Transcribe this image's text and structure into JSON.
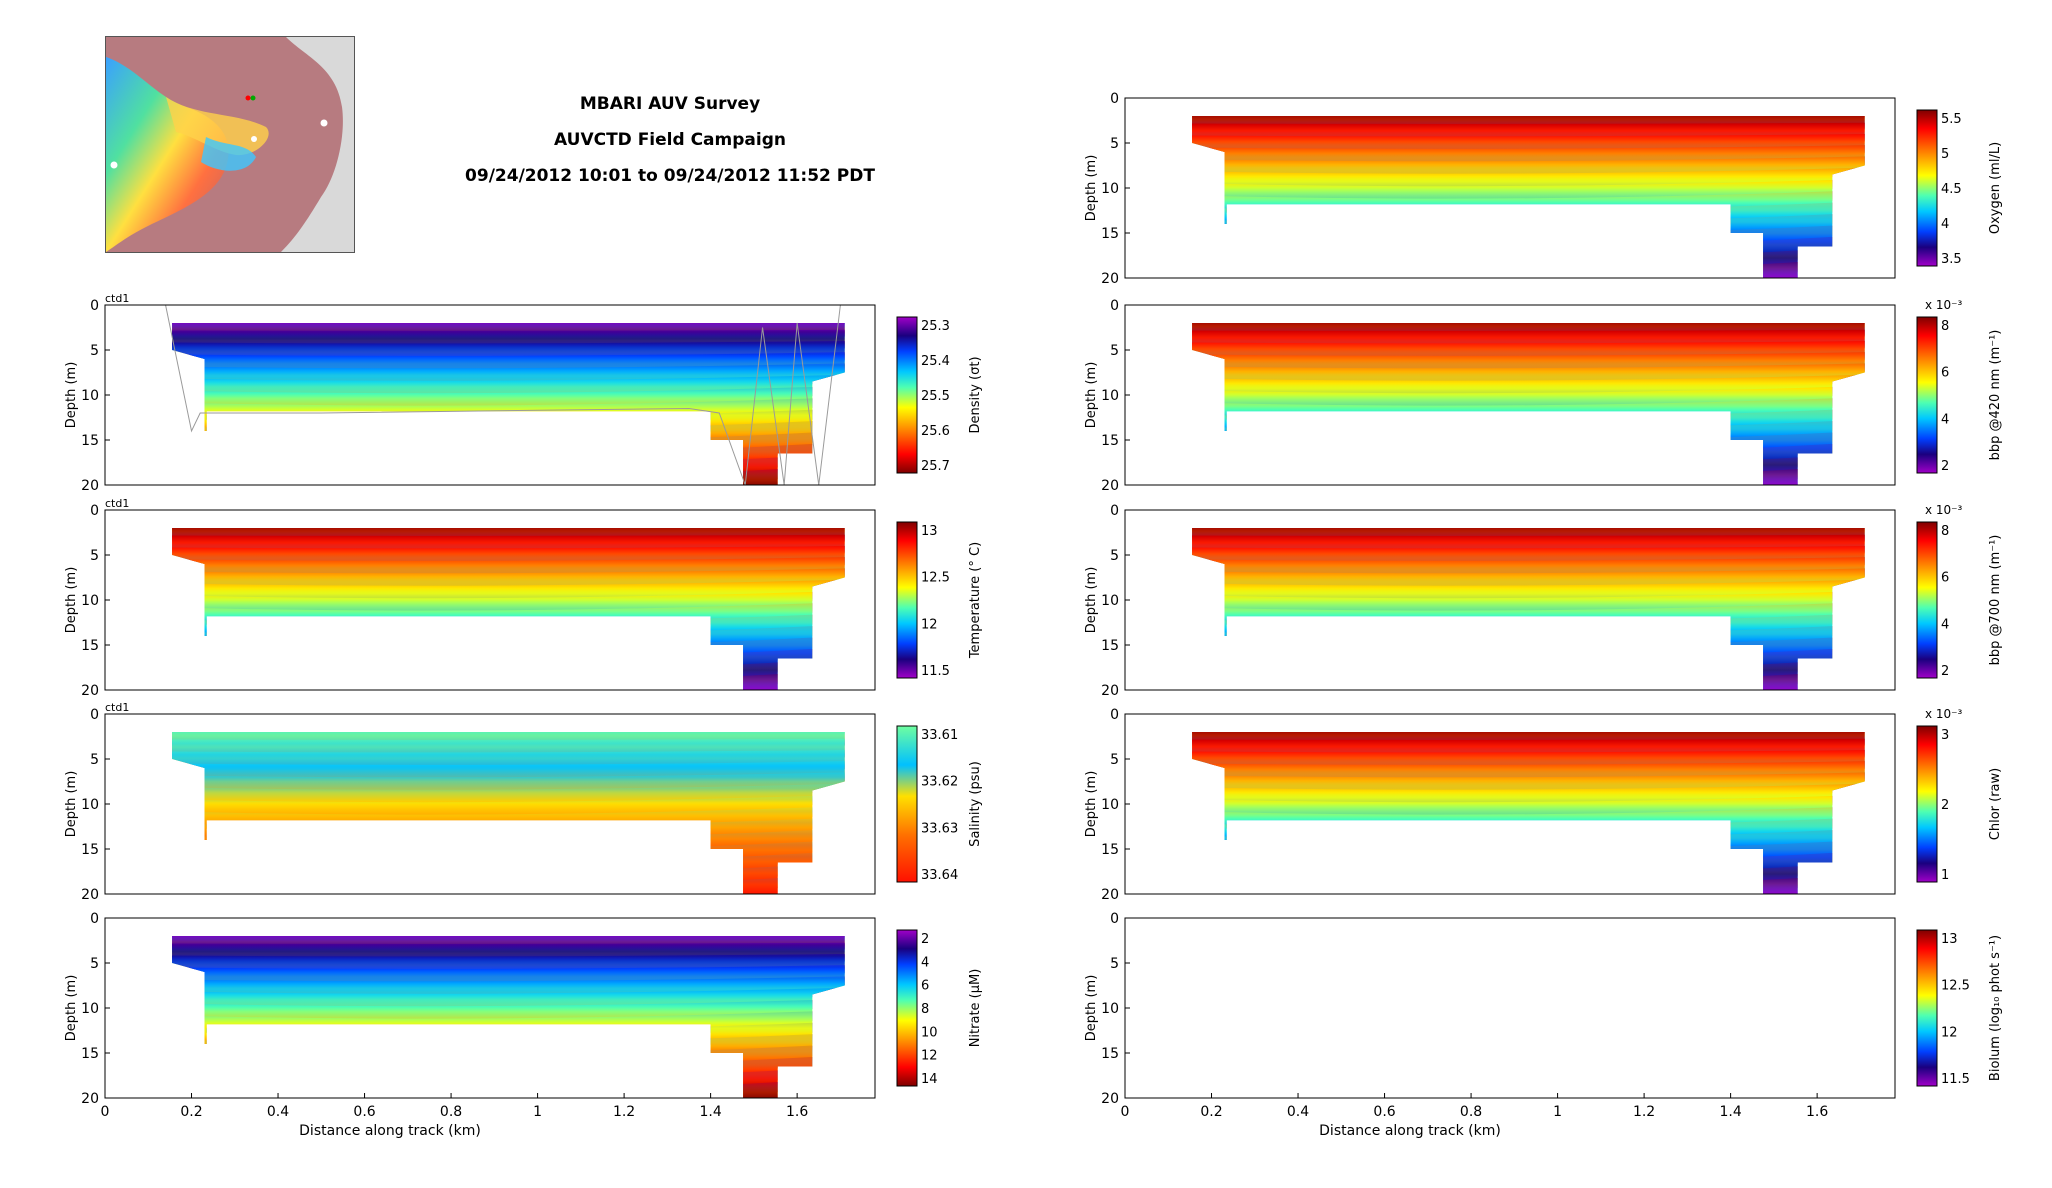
{
  "header": {
    "line1": "MBARI AUV Survey",
    "line2": "AUVCTD Field Campaign",
    "line3": "09/24/2012 10:01 to 09/24/2012 11:52 PDT"
  },
  "map": {
    "icon": "location-map-icon"
  },
  "chart_data": [
    {
      "type": "heatmap",
      "panel": "density",
      "platform_label": "ctd1",
      "ylabel": "Depth (m)",
      "xlabel": "",
      "xlim": [
        0,
        1.78
      ],
      "ylim": [
        20,
        0
      ],
      "yticks": [
        0,
        5,
        10,
        15,
        20
      ],
      "x_ticks": [],
      "colorbar": {
        "label": "Density (σt)",
        "ticks": [
          "25.3",
          "25.4",
          "25.5",
          "25.6",
          "25.7"
        ],
        "reversed": true
      },
      "track_overlay": true
    },
    {
      "type": "heatmap",
      "panel": "temperature",
      "platform_label": "ctd1",
      "ylabel": "Depth (m)",
      "xlabel": "",
      "xlim": [
        0,
        1.78
      ],
      "ylim": [
        20,
        0
      ],
      "yticks": [
        0,
        5,
        10,
        15,
        20
      ],
      "x_ticks": [],
      "colorbar": {
        "label": "Temperature (° C)",
        "ticks": [
          "13",
          "12.5",
          "12",
          "11.5"
        ],
        "reversed": false
      }
    },
    {
      "type": "heatmap",
      "panel": "salinity",
      "platform_label": "ctd1",
      "ylabel": "Depth (m)",
      "xlabel": "",
      "xlim": [
        0,
        1.78
      ],
      "ylim": [
        20,
        0
      ],
      "yticks": [
        0,
        5,
        10,
        15,
        20
      ],
      "x_ticks": [],
      "colorbar": {
        "label": "Salinity (psu)",
        "ticks": [
          "33.61",
          "33.62",
          "33.63",
          "33.64"
        ],
        "reversed": true
      }
    },
    {
      "type": "heatmap",
      "panel": "nitrate",
      "platform_label": "",
      "ylabel": "Depth (m)",
      "xlabel": "Distance along track (km)",
      "xlim": [
        0,
        1.78
      ],
      "ylim": [
        20,
        0
      ],
      "yticks": [
        0,
        5,
        10,
        15,
        20
      ],
      "x_ticks": [
        "0",
        "0.2",
        "0.4",
        "0.6",
        "0.8",
        "1",
        "1.2",
        "1.4",
        "1.6"
      ],
      "colorbar": {
        "label": "Nitrate (μM)",
        "ticks": [
          "2",
          "4",
          "6",
          "8",
          "10",
          "12",
          "14"
        ],
        "reversed": true
      }
    },
    {
      "type": "heatmap",
      "panel": "oxygen",
      "platform_label": "",
      "ylabel": "Depth (m)",
      "xlabel": "",
      "xlim": [
        0,
        1.78
      ],
      "ylim": [
        20,
        0
      ],
      "yticks": [
        0,
        5,
        10,
        15,
        20
      ],
      "x_ticks": [],
      "colorbar": {
        "label": "Oxygen (ml/L)",
        "ticks": [
          "5.5",
          "5",
          "4.5",
          "4",
          "3.5"
        ],
        "reversed": false
      }
    },
    {
      "type": "heatmap",
      "panel": "bbp420",
      "platform_label": "",
      "ylabel": "Depth (m)",
      "xlabel": "",
      "xlim": [
        0,
        1.78
      ],
      "ylim": [
        20,
        0
      ],
      "yticks": [
        0,
        5,
        10,
        15,
        20
      ],
      "x_ticks": [],
      "colorbar": {
        "label": "bbp @420 nm (m⁻¹)",
        "ticks": [
          "8",
          "6",
          "4",
          "2"
        ],
        "reversed": false,
        "exponent": "x 10⁻³"
      }
    },
    {
      "type": "heatmap",
      "panel": "bbp700",
      "platform_label": "",
      "ylabel": "Depth (m)",
      "xlabel": "",
      "xlim": [
        0,
        1.78
      ],
      "ylim": [
        20,
        0
      ],
      "yticks": [
        0,
        5,
        10,
        15,
        20
      ],
      "x_ticks": [],
      "colorbar": {
        "label": "bbp @700 nm (m⁻¹)",
        "ticks": [
          "8",
          "6",
          "4",
          "2"
        ],
        "reversed": false,
        "exponent": "x 10⁻³"
      }
    },
    {
      "type": "heatmap",
      "panel": "chlor",
      "platform_label": "",
      "ylabel": "Depth (m)",
      "xlabel": "",
      "xlim": [
        0,
        1.78
      ],
      "ylim": [
        20,
        0
      ],
      "yticks": [
        0,
        5,
        10,
        15,
        20
      ],
      "x_ticks": [],
      "colorbar": {
        "label": "Chlor (raw)",
        "ticks": [
          "3",
          "2",
          "1"
        ],
        "reversed": false,
        "exponent": "x 10⁻³"
      }
    },
    {
      "type": "heatmap",
      "panel": "biolum",
      "platform_label": "",
      "ylabel": "Depth (m)",
      "xlabel": "Distance along track (km)",
      "xlim": [
        0,
        1.78
      ],
      "ylim": [
        20,
        0
      ],
      "yticks": [
        0,
        5,
        10,
        15,
        20
      ],
      "x_ticks": [
        "0",
        "0.2",
        "0.4",
        "0.6",
        "0.8",
        "1",
        "1.2",
        "1.4",
        "1.6"
      ],
      "colorbar": {
        "label": "Biolum (log₁₀ phot s⁻¹)",
        "ticks": [
          "13",
          "12.5",
          "12",
          "11.5"
        ],
        "reversed": false
      },
      "empty": true
    }
  ]
}
